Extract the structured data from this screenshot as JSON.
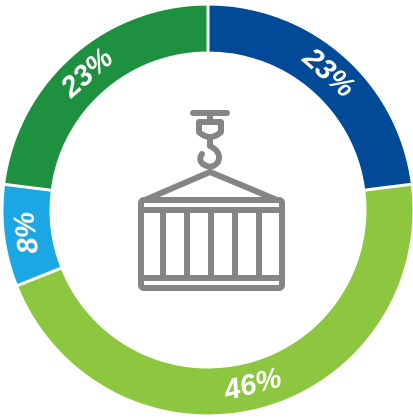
{
  "chart_data": {
    "type": "donut",
    "values": [
      23,
      46,
      8,
      23
    ],
    "value_labels": [
      "23%",
      "46%",
      "8%",
      "23%"
    ],
    "colors": [
      "#004a98",
      "#8dc63f",
      "#1aa7e4",
      "#1e9140"
    ]
  }
}
